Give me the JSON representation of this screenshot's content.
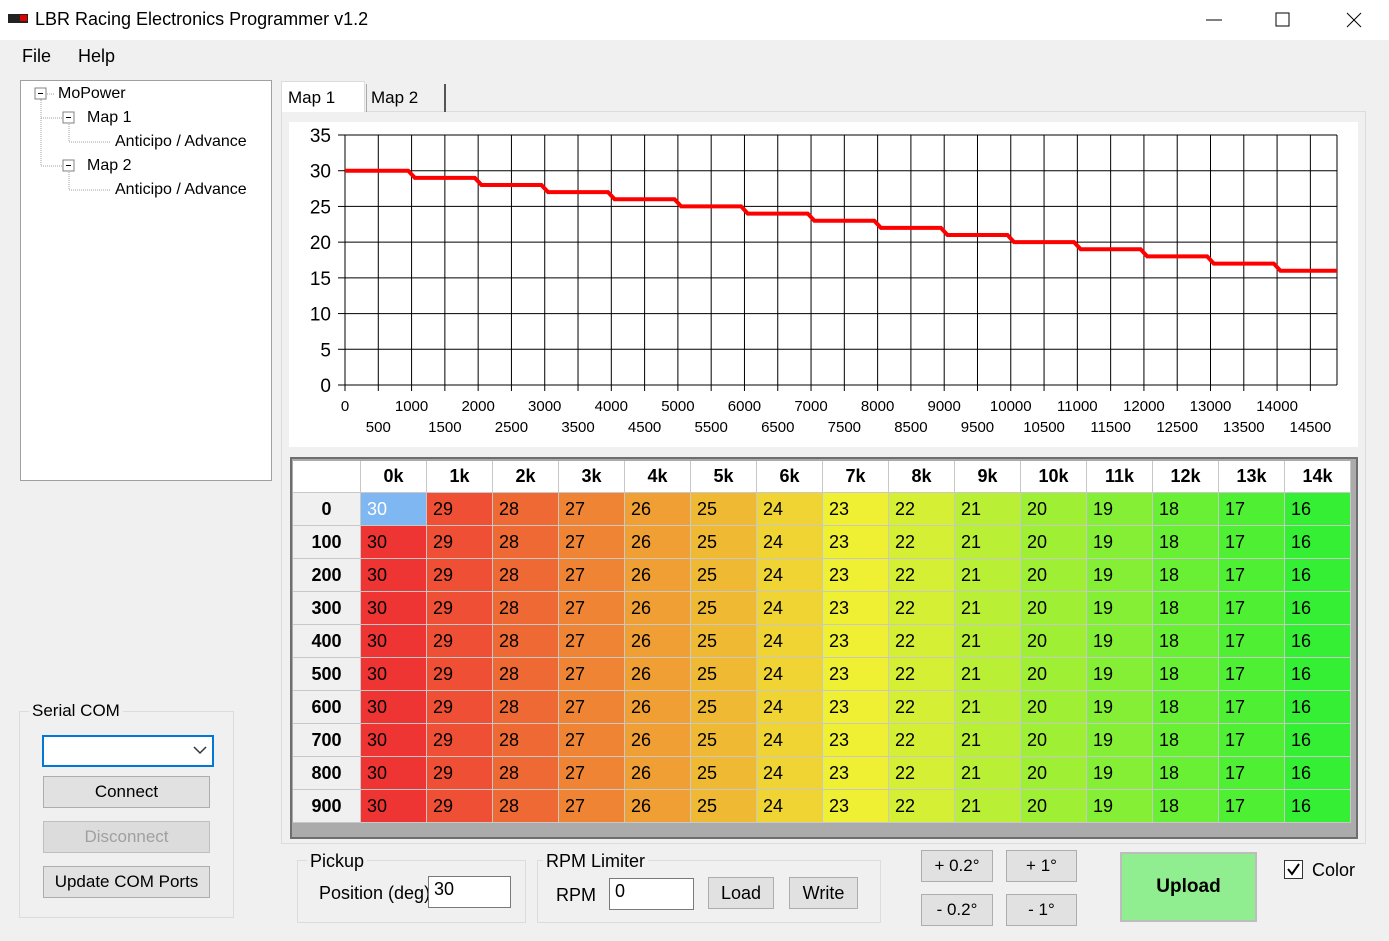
{
  "window": {
    "title": "LBR Racing Electronics Programmer v1.2"
  },
  "menu": [
    "File",
    "Help"
  ],
  "tree": {
    "root": "MoPower",
    "maps": [
      {
        "label": "Map 1",
        "item": "Anticipo / Advance"
      },
      {
        "label": "Map 2",
        "item": "Anticipo / Advance"
      }
    ]
  },
  "tabs": [
    "Map 1",
    "Map 2"
  ],
  "chart_data": {
    "type": "line",
    "color": "#ff0000",
    "grid": true,
    "x": [
      0,
      950,
      1050,
      1950,
      2050,
      2950,
      3050,
      3950,
      4050,
      4950,
      5050,
      5950,
      6050,
      6950,
      7050,
      7950,
      8050,
      8950,
      9050,
      9950,
      10050,
      10950,
      11050,
      11950,
      12050,
      12950,
      13050,
      13950,
      14050,
      14900
    ],
    "values": [
      30,
      30,
      29,
      29,
      28,
      28,
      27,
      27,
      26,
      26,
      25,
      25,
      24,
      24,
      23,
      23,
      22,
      22,
      21,
      21,
      20,
      20,
      19,
      19,
      18,
      18,
      17,
      17,
      16,
      16
    ],
    "xlim": [
      0,
      14900
    ],
    "xticks": [
      0,
      500,
      1000,
      1500,
      2000,
      2500,
      3000,
      3500,
      4000,
      4500,
      5000,
      5500,
      6000,
      6500,
      7000,
      7500,
      8000,
      8500,
      9000,
      9500,
      10000,
      10500,
      11000,
      11500,
      12000,
      12500,
      13000,
      13500,
      14000,
      14500
    ],
    "ylim": [
      0,
      35
    ],
    "yticks": [
      0,
      5,
      10,
      15,
      20,
      25,
      30,
      35
    ]
  },
  "table": {
    "columns": [
      "0k",
      "1k",
      "2k",
      "3k",
      "4k",
      "5k",
      "6k",
      "7k",
      "8k",
      "9k",
      "10k",
      "11k",
      "12k",
      "13k",
      "14k"
    ],
    "row_headers": [
      "0",
      "100",
      "200",
      "300",
      "400",
      "500",
      "600",
      "700",
      "800",
      "900"
    ],
    "rows": [
      [
        30,
        29,
        28,
        27,
        26,
        25,
        24,
        23,
        22,
        21,
        20,
        19,
        18,
        17,
        16
      ],
      [
        30,
        29,
        28,
        27,
        26,
        25,
        24,
        23,
        22,
        21,
        20,
        19,
        18,
        17,
        16
      ],
      [
        30,
        29,
        28,
        27,
        26,
        25,
        24,
        23,
        22,
        21,
        20,
        19,
        18,
        17,
        16
      ],
      [
        30,
        29,
        28,
        27,
        26,
        25,
        24,
        23,
        22,
        21,
        20,
        19,
        18,
        17,
        16
      ],
      [
        30,
        29,
        28,
        27,
        26,
        25,
        24,
        23,
        22,
        21,
        20,
        19,
        18,
        17,
        16
      ],
      [
        30,
        29,
        28,
        27,
        26,
        25,
        24,
        23,
        22,
        21,
        20,
        19,
        18,
        17,
        16
      ],
      [
        30,
        29,
        28,
        27,
        26,
        25,
        24,
        23,
        22,
        21,
        20,
        19,
        18,
        17,
        16
      ],
      [
        30,
        29,
        28,
        27,
        26,
        25,
        24,
        23,
        22,
        21,
        20,
        19,
        18,
        17,
        16
      ],
      [
        30,
        29,
        28,
        27,
        26,
        25,
        24,
        23,
        22,
        21,
        20,
        19,
        18,
        17,
        16
      ],
      [
        30,
        29,
        28,
        27,
        26,
        25,
        24,
        23,
        22,
        21,
        20,
        19,
        18,
        17,
        16
      ]
    ],
    "selected_cell": [
      0,
      0
    ]
  },
  "serial_com": {
    "title": "Serial COM",
    "buttons": [
      {
        "label": "Connect",
        "enabled": true
      },
      {
        "label": "Disconnect",
        "enabled": false
      },
      {
        "label": "Update COM Ports",
        "enabled": true
      }
    ]
  },
  "pickup": {
    "title": "Pickup",
    "label": "Position (deg)",
    "value": 30
  },
  "rpm_limiter": {
    "title": "RPM Limiter",
    "label": "RPM",
    "value": 0,
    "buttons": [
      "Load",
      "Write"
    ]
  },
  "adjust": [
    "+ 0.2°",
    "+ 1°",
    "- 0.2°",
    "- 1°"
  ],
  "upload": "Upload",
  "color_option": {
    "label": "Color",
    "checked": true
  }
}
